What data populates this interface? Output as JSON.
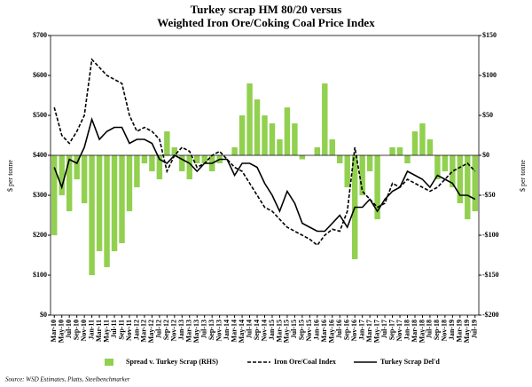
{
  "chart_data": {
    "type": "bar_line_combo",
    "title": "Turkey scrap HM 80/20 versus",
    "subtitle": "Weighted Iron Ore/Coking Coal Price Index",
    "ylabel": "$ per tonne",
    "y2label": "$ per tonne",
    "source": "Source: WSD Estimates, Platts, Steelbenchmarker",
    "categories": [
      "Mar-10",
      "May-10",
      "Jul-10",
      "Sep-10",
      "Nov-10",
      "Jan-11",
      "Mar-11",
      "May-11",
      "Jul-11",
      "Sep-11",
      "Nov-11",
      "Jan-12",
      "Mar-12",
      "May-12",
      "Jul-12",
      "Sep-12",
      "Nov-12",
      "Jan-13",
      "Mar-13",
      "May-13",
      "Jul-13",
      "Sep-13",
      "Nov-13",
      "Jan-14",
      "Mar-14",
      "May-14",
      "Jul-14",
      "Sep-14",
      "Nov-14",
      "Jan-15",
      "Mar-15",
      "May-15",
      "Jul-15",
      "Sep-15",
      "Nov-15",
      "Jan-16",
      "Mar-16",
      "May-16",
      "Jul-16",
      "Sep-16",
      "Nov-16",
      "Jan-17",
      "Mar-17",
      "May-17",
      "Jul-17",
      "Sep-17",
      "Nov-17",
      "Jan-18",
      "Mar-18",
      "May-18",
      "Jul-18",
      "Sep-18",
      "Nov-18",
      "Jan-19",
      "Mar-19",
      "May-19",
      "Jul-19"
    ],
    "series": [
      {
        "name": "Spread v. Turkey Scrap (RHS)",
        "color": "#92d050",
        "kind": "bar",
        "axis": "y2",
        "values": [
          -100,
          -50,
          -70,
          -30,
          -60,
          -150,
          -120,
          -140,
          -120,
          -110,
          -70,
          -40,
          -10,
          -20,
          -30,
          30,
          10,
          -20,
          -30,
          -10,
          -10,
          -20,
          -10,
          0,
          10,
          50,
          90,
          70,
          50,
          40,
          20,
          60,
          40,
          -5,
          0,
          10,
          90,
          20,
          -10,
          -40,
          -130,
          -50,
          -20,
          -80,
          0,
          10,
          10,
          -10,
          30,
          40,
          20,
          -30,
          -20,
          -40,
          -60,
          -80,
          -70
        ]
      },
      {
        "name": "Iron Ore/Coal Index",
        "color": "#000000",
        "kind": "line",
        "line_style": "dashed",
        "values": [
          520,
          450,
          430,
          460,
          500,
          640,
          620,
          600,
          590,
          580,
          500,
          460,
          470,
          460,
          440,
          360,
          400,
          420,
          410,
          370,
          380,
          400,
          410,
          390,
          370,
          360,
          330,
          300,
          270,
          260,
          240,
          220,
          210,
          200,
          190,
          175,
          200,
          215,
          210,
          260,
          420,
          310,
          290,
          270,
          280,
          330,
          320,
          340,
          330,
          320,
          310,
          320,
          340,
          360,
          370,
          380,
          360
        ]
      },
      {
        "name": "Turkey Scrap Del'd",
        "color": "#000000",
        "kind": "line",
        "line_style": "solid",
        "values": [
          370,
          320,
          390,
          380,
          420,
          490,
          440,
          460,
          470,
          470,
          430,
          440,
          440,
          430,
          390,
          380,
          400,
          390,
          380,
          360,
          380,
          380,
          390,
          390,
          350,
          380,
          380,
          370,
          330,
          300,
          260,
          310,
          280,
          230,
          220,
          210,
          210,
          230,
          250,
          220,
          270,
          270,
          290,
          260,
          290,
          310,
          320,
          360,
          350,
          340,
          320,
          350,
          340,
          330,
          300,
          300,
          290
        ]
      }
    ],
    "ylim": [
      0,
      700
    ],
    "yticks": [
      {
        "value": 0,
        "label": "$0"
      },
      {
        "value": 100,
        "label": "$100"
      },
      {
        "value": 200,
        "label": "$200"
      },
      {
        "value": 300,
        "label": "$300"
      },
      {
        "value": 400,
        "label": "$400"
      },
      {
        "value": 500,
        "label": "$500"
      },
      {
        "value": 600,
        "label": "$600"
      },
      {
        "value": 700,
        "label": "$700"
      }
    ],
    "y2lim": [
      -200,
      150
    ],
    "y2ticks": [
      {
        "value": -200,
        "label": "-$200"
      },
      {
        "value": -150,
        "label": "-$150"
      },
      {
        "value": -100,
        "label": "-$100"
      },
      {
        "value": -50,
        "label": "-$50"
      },
      {
        "value": 0,
        "label": "$0"
      },
      {
        "value": 50,
        "label": "$50"
      },
      {
        "value": 100,
        "label": "$100"
      },
      {
        "value": 150,
        "label": "$150"
      }
    ],
    "legend": "bottom"
  }
}
